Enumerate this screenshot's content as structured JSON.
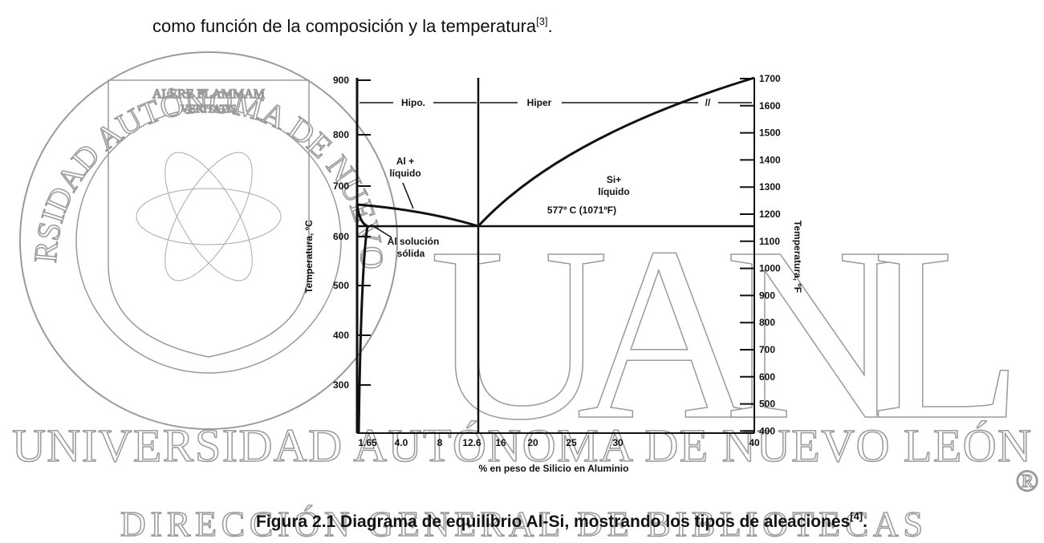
{
  "header": {
    "text": "como función de la composición y la temperatura",
    "ref": "[3]",
    "end": "."
  },
  "figure": {
    "left_ticks": [
      "900",
      "800",
      "700",
      "600",
      "500",
      "400",
      "300"
    ],
    "right_ticks": [
      "1700",
      "1600",
      "1500",
      "1400",
      "1300",
      "1200",
      "1100",
      "1000",
      "900",
      "800",
      "700",
      "600",
      "500",
      "400"
    ],
    "bottom_ticks": [
      "1.65",
      "4.0",
      "8",
      "12.6",
      "16",
      "20",
      "25",
      "30",
      "40"
    ],
    "y_label_left": "Temperatura, ºC",
    "y_label_right": "Temperatura, ºF",
    "x_label": "% en peso de Silicio en Aluminio",
    "annotations": {
      "hipo": "Hipo.",
      "hiper": "Hiper",
      "break": "//",
      "al_liquido_1": "Al +",
      "al_liquido_2": "líquido",
      "si_liquido_1": "Si+",
      "si_liquido_2": "líquido",
      "eutectic": "577º C (1071ºF)",
      "al_solida_1": "Al solución",
      "al_solida_2": "sólida"
    }
  },
  "caption": {
    "text": "Figura 2.1 Diagrama de equilibrio Al-Si, mostrando los tipos de aleaciones",
    "ref": "[4]",
    "end": "."
  },
  "watermark": {
    "ring": "UNIVERSIDAD AUTÓNOMA DE NUEVO LEÓN",
    "motto_1": "ALERE FLAMMAM",
    "motto_2": "VERITATIS",
    "logo": "UANL",
    "line_1": "UNIVERSIDAD AUTÓNOMA DE NUEVO LEÓN",
    "line_2": "DIRECCIÓN GENERAL DE BIBLIOTECAS",
    "mark": "®"
  }
}
